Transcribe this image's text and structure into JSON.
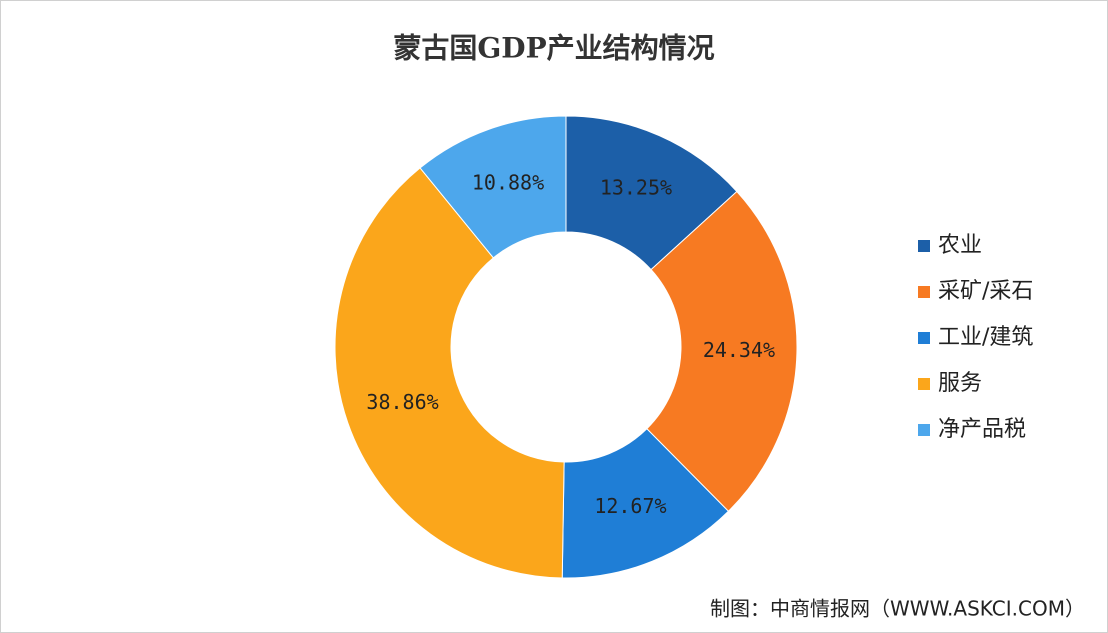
{
  "chart_data": {
    "type": "donut",
    "title": "蒙古国GDP产业结构情况",
    "categories": [
      "农业",
      "采矿/采石",
      "工业/建筑",
      "服务",
      "净产品税"
    ],
    "values": [
      13.25,
      24.34,
      12.67,
      38.86,
      10.88
    ],
    "value_labels": [
      "13.25%",
      "24.34%",
      "12.67%",
      "38.86%",
      "10.88%"
    ],
    "colors": [
      "#1c5fa8",
      "#f77a22",
      "#1f7ed6",
      "#fba61b",
      "#4da7ec"
    ],
    "legend": "right",
    "source": "制图：中商情报网（WWW.ASKCI.COM）"
  }
}
